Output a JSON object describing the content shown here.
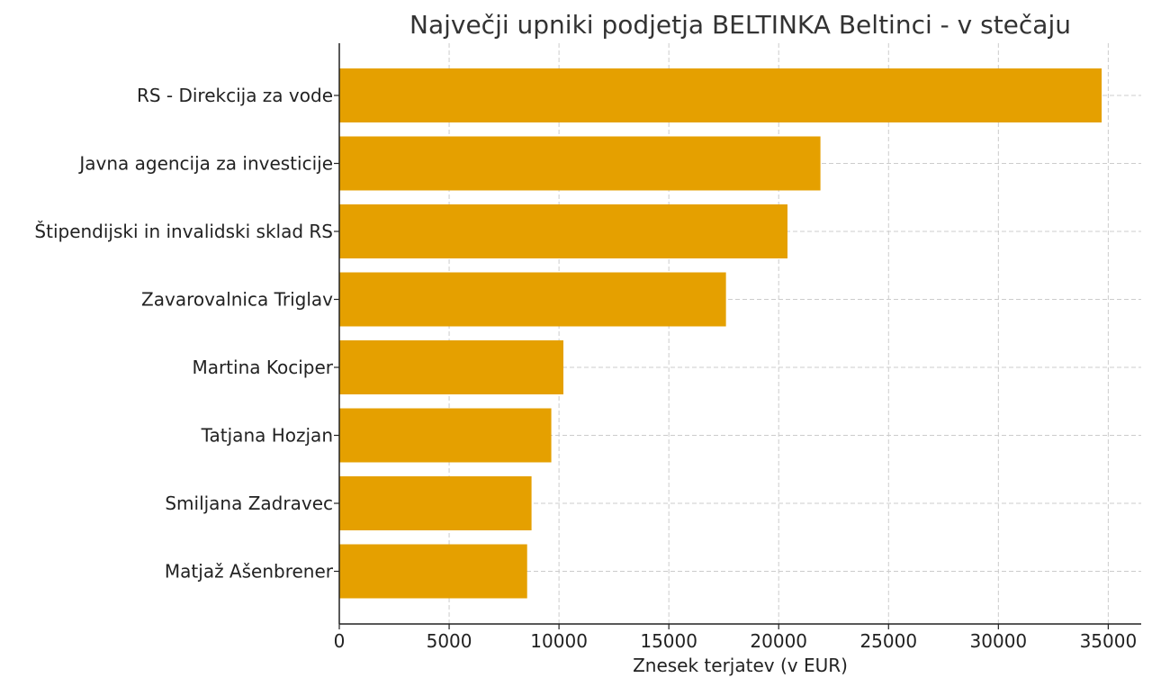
{
  "chart_data": {
    "type": "bar",
    "orientation": "horizontal",
    "title": "Največji upniki podjetja BELTINKA Beltinci - v stečaju",
    "xlabel": "Znesek terjatev (v EUR)",
    "ylabel": "",
    "categories": [
      "RS - Direkcija za vode",
      "Javna agencija za investicije",
      "Štipendijski in invalidski sklad RS",
      "Zavarovalnica Triglav",
      "Martina Kociper",
      "Tatjana Hozjan",
      "Smiljana Zadravec",
      "Matjaž Ašenbrener"
    ],
    "values": [
      34700,
      21900,
      20400,
      17600,
      10200,
      9650,
      8750,
      8550
    ],
    "xlim": [
      0,
      36500
    ],
    "xticks": [
      0,
      5000,
      10000,
      15000,
      20000,
      25000,
      30000,
      35000
    ],
    "grid": true,
    "bar_color": "#E5A000"
  }
}
